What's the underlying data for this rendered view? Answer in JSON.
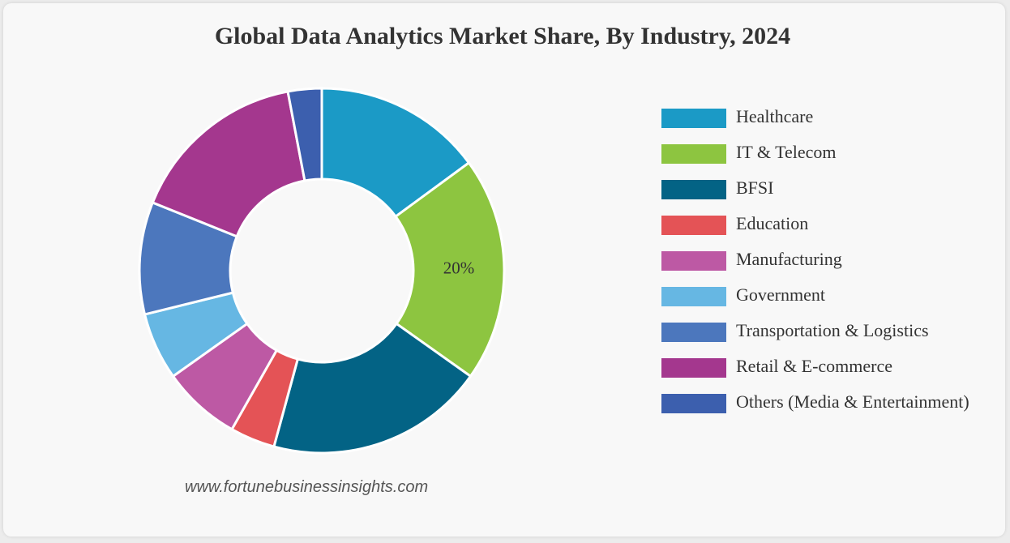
{
  "chart_data": {
    "type": "pie",
    "title": "Global Data Analytics Market Share, By Industry, 2024",
    "categories": [
      "Healthcare",
      "IT & Telecom",
      "BFSI",
      "Education",
      "Manufacturing",
      "Government",
      "Transportation & Logistics",
      "Retail & E-commerce",
      "Others (Media & Entertainment)"
    ],
    "values": [
      15,
      20,
      19.5,
      4,
      7,
      6,
      10,
      16,
      3
    ],
    "colors": [
      "#1b9ac6",
      "#8dc540",
      "#036385",
      "#e45356",
      "#bd59a4",
      "#66b7e3",
      "#4c77bd",
      "#a4378e",
      "#3c5fae"
    ],
    "data_labels": [
      {
        "category": "IT & Telecom",
        "text": "20%"
      }
    ],
    "legend_position": "right",
    "hole": "donut"
  },
  "source": "www.fortunebusinessinsights.com"
}
